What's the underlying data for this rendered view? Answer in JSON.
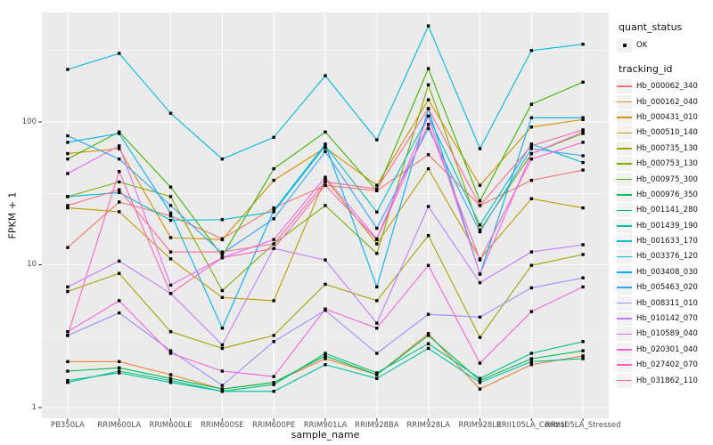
{
  "figure": {
    "background": "#FFFFFF",
    "panel_background": "#EBEBEB",
    "grid_color": "#FFFFFF",
    "point_color": "#000000",
    "axis_text_color": "#4D4D4D",
    "tick_mark_color": "#333333"
  },
  "axes": {
    "x_title": "sample_name",
    "y_title": "FPKM + 1"
  },
  "legend": {
    "quant_status_title": "quant_status",
    "quant_status_items": [
      {
        "label": "OK",
        "marker": "black-point"
      }
    ],
    "tracking_id_title": "tracking_id"
  },
  "chart_data": {
    "type": "line",
    "title": "",
    "xlabel": "sample_name",
    "ylabel": "FPKM + 1",
    "y_scale": "log10",
    "y_ticks": [
      1,
      10,
      100
    ],
    "y_tick_labels": [
      "1",
      "10",
      "100"
    ],
    "y_minor_gridlines": [
      3.1623,
      31.623,
      316.23
    ],
    "ylim_log_range": [
      0.84,
      583
    ],
    "grid": true,
    "legend_position": "right",
    "point_marker": "small-black-square",
    "categories": [
      "PB350LA",
      "RRIM600LA",
      "RRIM600LE",
      "RRIM600SE",
      "RRIM600PE",
      "RRIM901LA",
      "RRIM928BA",
      "RRIM928LA",
      "RRIM928LE",
      "RRII105LA_Control",
      "RRII105LA_Stressed"
    ],
    "series": [
      {
        "name": "Hb_000062_340",
        "color": "#F8766D",
        "values": [
          13.2,
          27.5,
          22,
          15.2,
          25,
          36,
          33,
          59,
          26,
          39,
          46
        ]
      },
      {
        "name": "Hb_000162_040",
        "color": "#EA8331",
        "values": [
          2.1,
          2.1,
          1.7,
          1.35,
          1.5,
          2.2,
          1.7,
          3.3,
          1.35,
          2.0,
          2.3
        ]
      },
      {
        "name": "Hb_000431_010",
        "color": "#D89000",
        "values": [
          60,
          65,
          15.5,
          15,
          39,
          66,
          36,
          143,
          36,
          92,
          104
        ]
      },
      {
        "name": "Hb_000510_140",
        "color": "#C09B00",
        "values": [
          25,
          23.5,
          11,
          5.9,
          5.6,
          40,
          14,
          47,
          11,
          29,
          25
        ]
      },
      {
        "name": "Hb_000735_130",
        "color": "#A3A500",
        "values": [
          6.5,
          8.7,
          3.4,
          2.6,
          3.2,
          7.3,
          5.6,
          16,
          3.1,
          9.9,
          11.8
        ]
      },
      {
        "name": "Hb_000753_130",
        "color": "#7CAE00",
        "values": [
          30,
          38,
          30,
          6.6,
          14,
          26,
          12,
          182,
          17.5,
          60,
          83
        ]
      },
      {
        "name": "Hb_000975_300",
        "color": "#39B600",
        "values": [
          55,
          85,
          35,
          11.5,
          47,
          85,
          33,
          236,
          28,
          133,
          190
        ]
      },
      {
        "name": "Hb_000976_350",
        "color": "#00BB4E",
        "values": [
          1.8,
          1.9,
          1.6,
          1.35,
          1.5,
          2.3,
          1.7,
          3.2,
          1.55,
          2.2,
          2.5
        ]
      },
      {
        "name": "Hb_001141_280",
        "color": "#00BF7D",
        "values": [
          1.5,
          1.8,
          1.55,
          1.3,
          1.45,
          2.4,
          1.75,
          2.8,
          1.6,
          2.4,
          2.9
        ]
      },
      {
        "name": "Hb_001439_190",
        "color": "#00C1A3",
        "values": [
          1.55,
          1.75,
          1.5,
          1.3,
          1.3,
          2.0,
          1.6,
          2.6,
          1.5,
          2.1,
          2.2
        ]
      },
      {
        "name": "Hb_001633_170",
        "color": "#00BFC4",
        "values": [
          30,
          32,
          20.5,
          20.7,
          23.5,
          68,
          23.4,
          110,
          19,
          70,
          52
        ]
      },
      {
        "name": "Hb_003376_120",
        "color": "#00BAE0",
        "values": [
          233,
          302,
          115,
          55,
          78,
          211,
          75,
          470,
          65,
          316,
          350
        ]
      },
      {
        "name": "Hb_003408_030",
        "color": "#00B0F6",
        "values": [
          72,
          83,
          23,
          3.6,
          24,
          70,
          7.0,
          124,
          8.6,
          107,
          107
        ]
      },
      {
        "name": "Hb_005463_020",
        "color": "#35A2FF",
        "values": [
          80,
          55,
          26,
          12,
          21,
          62,
          18,
          90,
          17,
          65,
          58
        ]
      },
      {
        "name": "Hb_008311_010",
        "color": "#9590FF",
        "values": [
          3.2,
          4.6,
          2.5,
          1.43,
          2.9,
          4.8,
          2.4,
          4.5,
          4.3,
          6.9,
          8.1
        ]
      },
      {
        "name": "Hb_010142_070",
        "color": "#C77CFF",
        "values": [
          7.0,
          10.6,
          6.3,
          2.75,
          13,
          10.8,
          3.9,
          25.6,
          7.5,
          12.3,
          13.8
        ]
      },
      {
        "name": "Hb_010589_040",
        "color": "#E76BF3",
        "values": [
          43.5,
          68,
          7.2,
          11.2,
          15,
          41,
          15.2,
          110,
          8.6,
          60,
          85
        ]
      },
      {
        "name": "Hb_020301_040",
        "color": "#FA62DB",
        "values": [
          3.4,
          5.6,
          2.4,
          1.8,
          1.65,
          4.9,
          3.6,
          9.9,
          2.05,
          4.7,
          7.0
        ]
      },
      {
        "name": "Hb_027402_070",
        "color": "#FF62BC",
        "values": [
          3.2,
          45,
          6.3,
          11.2,
          13,
          36,
          15,
          96,
          10.8,
          55,
          72
        ]
      },
      {
        "name": "Hb_031862_110",
        "color": "#FF6A98",
        "values": [
          26,
          33.5,
          12.3,
          12.3,
          14,
          38,
          34,
          124,
          26,
          68,
          88
        ]
      }
    ]
  }
}
